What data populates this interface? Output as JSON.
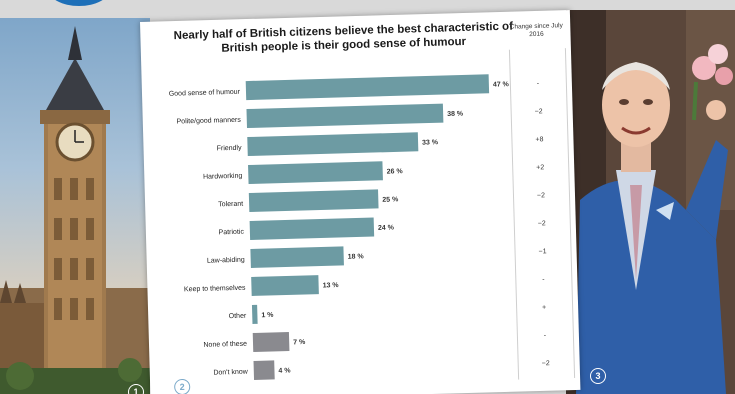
{
  "chart_data": {
    "type": "bar",
    "orientation": "horizontal",
    "title": "Nearly half of British citizens believe the best characteristic of British people is their good sense of humour",
    "change_column_title": "Change since July 2016",
    "categories": [
      "Good sense of humour",
      "Polite/good manners",
      "Friendly",
      "Hardworking",
      "Tolerant",
      "Patriotic",
      "Law-abiding",
      "Keep to themselves",
      "Other",
      "None of these",
      "Don't know"
    ],
    "values": [
      47,
      38,
      33,
      26,
      25,
      24,
      18,
      13,
      1,
      7,
      4
    ],
    "value_labels": [
      "47 %",
      "38 %",
      "33 %",
      "26 %",
      "25 %",
      "24 %",
      "18 %",
      "13 %",
      "1 %",
      "7 %",
      "4 %"
    ],
    "changes": [
      "-",
      "−2",
      "+8",
      "+2",
      "−2",
      "−2",
      "−1",
      "-",
      "+",
      "-",
      "−2"
    ],
    "colors": [
      "#6d9ba3",
      "#6d9ba3",
      "#6d9ba3",
      "#6d9ba3",
      "#6d9ba3",
      "#6d9ba3",
      "#6d9ba3",
      "#6d9ba3",
      "#6d9ba3",
      "#8a8a8f",
      "#8a8a8f"
    ],
    "xlim": [
      0,
      50
    ]
  },
  "badges": {
    "left": "1",
    "middle": "2",
    "right": "3"
  }
}
